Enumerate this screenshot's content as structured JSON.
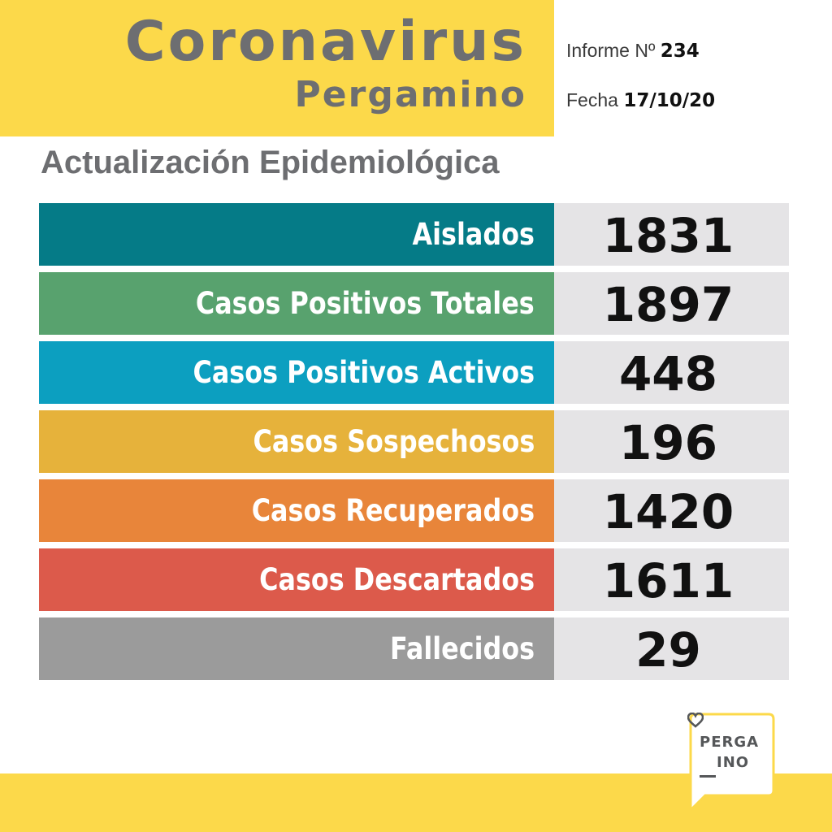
{
  "header": {
    "title": "Coronavirus",
    "subtitle": "Pergamino",
    "informe_label": "Informe Nº",
    "informe_number": "234",
    "fecha_label": "Fecha",
    "fecha_value": "17/10/20"
  },
  "section_title": "Actualización Epidemiológica",
  "stats": [
    {
      "label": "Aislados",
      "value": "1831",
      "color": "#057b87"
    },
    {
      "label": "Casos Positivos Totales",
      "value": "1897",
      "color": "#58a26e"
    },
    {
      "label": "Casos Positivos Activos",
      "value": "448",
      "color": "#0c9fc0"
    },
    {
      "label": "Casos Sospechosos",
      "value": "196",
      "color": "#e6b23b"
    },
    {
      "label": "Casos Recuperados",
      "value": "1420",
      "color": "#e8853a"
    },
    {
      "label": "Casos Descartados",
      "value": "1611",
      "color": "#dc5a4b"
    },
    {
      "label": "Fallecidos",
      "value": "29",
      "color": "#9b9b9b"
    }
  ],
  "logo": {
    "line1": "PERGA",
    "line2": "INO"
  },
  "colors": {
    "brand_yellow": "#fcd94a",
    "title_gray": "#6d6e71",
    "value_bg": "#e5e4e6"
  }
}
